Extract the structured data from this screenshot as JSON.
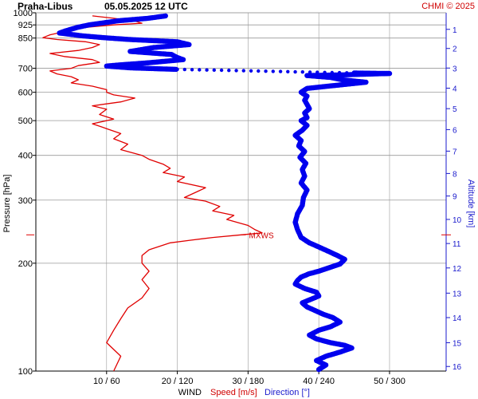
{
  "header": {
    "station": "Praha-Libus",
    "datetime": "05.05.2025 12 UTC",
    "credit": "CHMI © 2025"
  },
  "chart_data": {
    "type": "line",
    "ylabel": "Pressure [hPa]",
    "y2label": "Altitude [km]",
    "xlabel_parts": {
      "wind": "WIND",
      "speed": "Speed [m/s]",
      "direction": "Direction [°]"
    },
    "y_scale": "log",
    "ylim": [
      1000,
      100
    ],
    "pressure_ticks": [
      100,
      200,
      300,
      400,
      500,
      600,
      700,
      850,
      925,
      1000
    ],
    "altitude_ticks": [
      1,
      2,
      3,
      4,
      5,
      6,
      7,
      8,
      9,
      10,
      11,
      12,
      13,
      14,
      15,
      16
    ],
    "altitude_tick_pressure": [
      899,
      795,
      701,
      616,
      540,
      472,
      411,
      356,
      308,
      265,
      227,
      194,
      165,
      141,
      120,
      103
    ],
    "x_ticks": [
      "10 / 60",
      "20 / 120",
      "30 / 180",
      "40 / 240",
      "50 / 300"
    ],
    "speed_xlim": [
      0,
      58
    ],
    "direction_xlim": [
      0,
      348
    ],
    "colors": {
      "speed": "#e00000",
      "direction": "#0000ee",
      "grid": "#9a9a9a",
      "altitude_axis": "#1a1acc"
    },
    "annotation": {
      "text": "MXWS",
      "speed": 29,
      "pressure": 240
    },
    "series": [
      {
        "name": "Speed [m/s]",
        "points": [
          [
            8,
            980
          ],
          [
            11,
            965
          ],
          [
            14,
            948
          ],
          [
            15,
            935
          ],
          [
            11,
            925
          ],
          [
            7,
            910
          ],
          [
            4,
            885
          ],
          [
            2,
            868
          ],
          [
            1,
            852
          ],
          [
            3,
            842
          ],
          [
            7,
            830
          ],
          [
            9,
            815
          ],
          [
            8,
            800
          ],
          [
            6,
            785
          ],
          [
            2,
            770
          ],
          [
            4,
            755
          ],
          [
            8,
            740
          ],
          [
            9,
            727
          ],
          [
            6,
            712
          ],
          [
            5,
            700
          ],
          [
            2,
            688
          ],
          [
            3,
            675
          ],
          [
            5,
            663
          ],
          [
            6,
            650
          ],
          [
            5,
            637
          ],
          [
            8,
            624
          ],
          [
            10,
            610
          ],
          [
            10,
            600
          ],
          [
            11,
            590
          ],
          [
            14,
            578
          ],
          [
            12,
            564
          ],
          [
            8,
            550
          ],
          [
            10,
            538
          ],
          [
            9,
            520
          ],
          [
            11,
            505
          ],
          [
            8,
            490
          ],
          [
            10,
            475
          ],
          [
            12,
            460
          ],
          [
            11,
            445
          ],
          [
            13,
            430
          ],
          [
            12,
            415
          ],
          [
            15,
            400
          ],
          [
            16,
            390
          ],
          [
            18,
            378
          ],
          [
            19,
            368
          ],
          [
            18,
            358
          ],
          [
            21,
            348
          ],
          [
            20,
            338
          ],
          [
            24,
            325
          ],
          [
            23,
            318
          ],
          [
            21,
            305
          ],
          [
            24,
            298
          ],
          [
            26,
            288
          ],
          [
            25,
            280
          ],
          [
            28,
            272
          ],
          [
            27,
            265
          ],
          [
            30,
            255
          ],
          [
            31,
            248
          ],
          [
            32,
            243
          ],
          [
            29,
            240
          ],
          [
            25,
            236
          ],
          [
            22,
            232
          ],
          [
            19,
            228
          ],
          [
            16,
            218
          ],
          [
            15,
            210
          ],
          [
            15,
            200
          ],
          [
            16,
            190
          ],
          [
            15,
            180
          ],
          [
            16,
            170
          ],
          [
            15,
            160
          ],
          [
            13,
            150
          ],
          [
            12,
            140
          ],
          [
            11,
            130
          ],
          [
            10,
            120
          ],
          [
            12,
            110
          ],
          [
            11,
            100
          ]
        ]
      },
      {
        "name": "Direction [°]",
        "points": [
          [
            110,
            980
          ],
          [
            95,
            965
          ],
          [
            70,
            950
          ],
          [
            55,
            935
          ],
          [
            45,
            925
          ],
          [
            35,
            910
          ],
          [
            25,
            890
          ],
          [
            20,
            878
          ],
          [
            40,
            862
          ],
          [
            58,
            852
          ],
          [
            80,
            842
          ],
          [
            120,
            830
          ],
          [
            130,
            815
          ],
          [
            100,
            800
          ],
          [
            80,
            780
          ],
          [
            115,
            765
          ],
          [
            120,
            750
          ],
          [
            125,
            740
          ],
          [
            95,
            725
          ],
          [
            70,
            715
          ],
          [
            60,
            710
          ],
          [
            80,
            702
          ],
          [
            120,
            695
          ],
          [
            170,
            690
          ],
          [
            220,
            684
          ],
          [
            270,
            679
          ],
          [
            300,
            677
          ],
          [
            260,
            671
          ],
          [
            230,
            668
          ],
          [
            250,
            660
          ],
          [
            260,
            650
          ],
          [
            280,
            640
          ],
          [
            250,
            625
          ],
          [
            230,
            615
          ],
          [
            225,
            600
          ],
          [
            230,
            585
          ],
          [
            228,
            570
          ],
          [
            230,
            555
          ],
          [
            232,
            540
          ],
          [
            228,
            525
          ],
          [
            230,
            510
          ],
          [
            225,
            500
          ],
          [
            230,
            485
          ],
          [
            226,
            470
          ],
          [
            220,
            455
          ],
          [
            225,
            440
          ],
          [
            223,
            425
          ],
          [
            228,
            410
          ],
          [
            224,
            395
          ],
          [
            229,
            380
          ],
          [
            226,
            365
          ],
          [
            228,
            350
          ],
          [
            225,
            335
          ],
          [
            230,
            320
          ],
          [
            227,
            305
          ],
          [
            226,
            290
          ],
          [
            222,
            275
          ],
          [
            220,
            260
          ],
          [
            222,
            248
          ],
          [
            225,
            236
          ],
          [
            232,
            228
          ],
          [
            240,
            222
          ],
          [
            248,
            216
          ],
          [
            256,
            210
          ],
          [
            262,
            205
          ],
          [
            258,
            199
          ],
          [
            248,
            194
          ],
          [
            240,
            190
          ],
          [
            232,
            187
          ],
          [
            225,
            183
          ],
          [
            222,
            179
          ],
          [
            220,
            175
          ],
          [
            228,
            170
          ],
          [
            238,
            166
          ],
          [
            240,
            162
          ],
          [
            232,
            158
          ],
          [
            226,
            155
          ],
          [
            230,
            151
          ],
          [
            236,
            148
          ],
          [
            244,
            144
          ],
          [
            252,
            141
          ],
          [
            258,
            137
          ],
          [
            250,
            133
          ],
          [
            240,
            130
          ],
          [
            232,
            126
          ],
          [
            238,
            123
          ],
          [
            250,
            120
          ],
          [
            262,
            118
          ],
          [
            268,
            116
          ],
          [
            258,
            113
          ],
          [
            246,
            110
          ],
          [
            238,
            107
          ],
          [
            246,
            104
          ],
          [
            240,
            101
          ]
        ]
      }
    ]
  }
}
